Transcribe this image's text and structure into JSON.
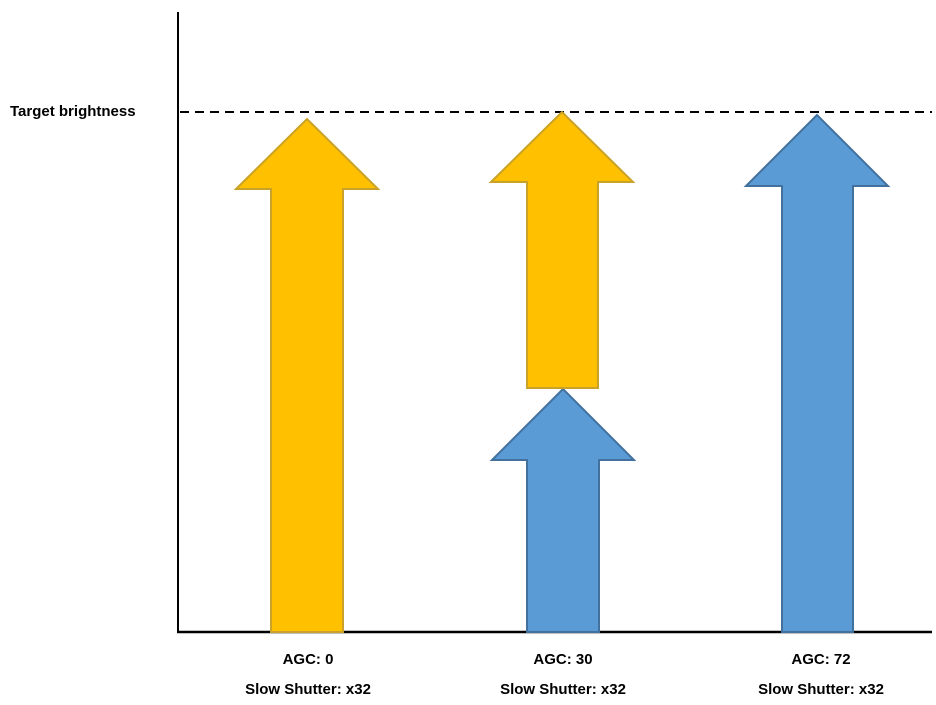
{
  "target_label": "Target brightness",
  "colors": {
    "shutter_arrow_fill": "#FFC000",
    "shutter_arrow_stroke": "#C9A227",
    "agc_arrow_fill": "#5B9BD5",
    "agc_arrow_stroke": "#41719C",
    "axis": "#000000"
  },
  "columns": [
    {
      "agc": "AGC: 0",
      "shutter": "Slow Shutter: x32",
      "contributions": [
        "slow-shutter"
      ]
    },
    {
      "agc": "AGC: 30",
      "shutter": "Slow Shutter: x32",
      "contributions": [
        "agc",
        "slow-shutter"
      ]
    },
    {
      "agc": "AGC: 72",
      "shutter": "Slow Shutter: x32",
      "contributions": [
        "agc"
      ]
    }
  ]
}
